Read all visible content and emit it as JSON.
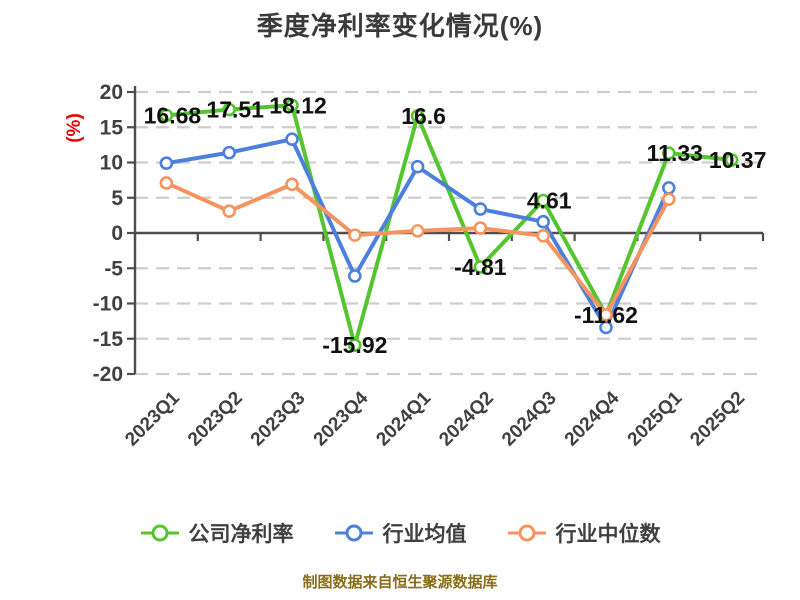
{
  "chart_data": {
    "type": "line",
    "title": "季度净利率变化情况(%)",
    "ylabel": "(%)",
    "xlabel": "",
    "ylim": [
      -20,
      20
    ],
    "y_ticks": [
      20,
      15,
      10,
      5,
      0,
      -5,
      -10,
      -15,
      -20
    ],
    "grid": "dashed-horizontal",
    "legend_position": "bottom",
    "categories": [
      "2023Q1",
      "2023Q2",
      "2023Q3",
      "2023Q4",
      "2024Q1",
      "2024Q2",
      "2024Q3",
      "2024Q4",
      "2025Q1",
      "2025Q2"
    ],
    "series": [
      {
        "name": "公司净利率",
        "color": "#55C52F",
        "values": [
          16.68,
          17.51,
          18.12,
          -15.92,
          16.6,
          -4.81,
          4.61,
          -11.62,
          11.33,
          10.37
        ]
      },
      {
        "name": "行业均值",
        "color": "#4C80DB",
        "values": [
          9.9,
          11.4,
          13.3,
          -6.1,
          9.4,
          3.4,
          1.6,
          -13.4,
          6.4,
          null
        ]
      },
      {
        "name": "行业中位数",
        "color": "#F5945F",
        "values": [
          7.1,
          3.1,
          6.9,
          -0.3,
          0.3,
          0.7,
          -0.4,
          -11.6,
          4.8,
          null
        ]
      }
    ],
    "value_labels": [
      "16.68",
      "17.51",
      "18.12",
      "-15.92",
      "16.6",
      "-4.81",
      "4.61",
      "-11.62",
      "11.33",
      "10.37"
    ]
  },
  "footer": "制图数据来自恒生聚源数据库",
  "colors": {
    "background": "#FFFFFF",
    "title_text": "#3A3A3A",
    "axis": "#4D4D4D",
    "grid": "#CDCDCD",
    "tick_text": "#404040",
    "unit_text": "#E60000",
    "value_label_text": "#111111",
    "footer_text": "#8A6D1A",
    "series_company": "#55C52F",
    "series_industry_avg": "#4C80DB",
    "series_industry_median": "#F5945F"
  }
}
